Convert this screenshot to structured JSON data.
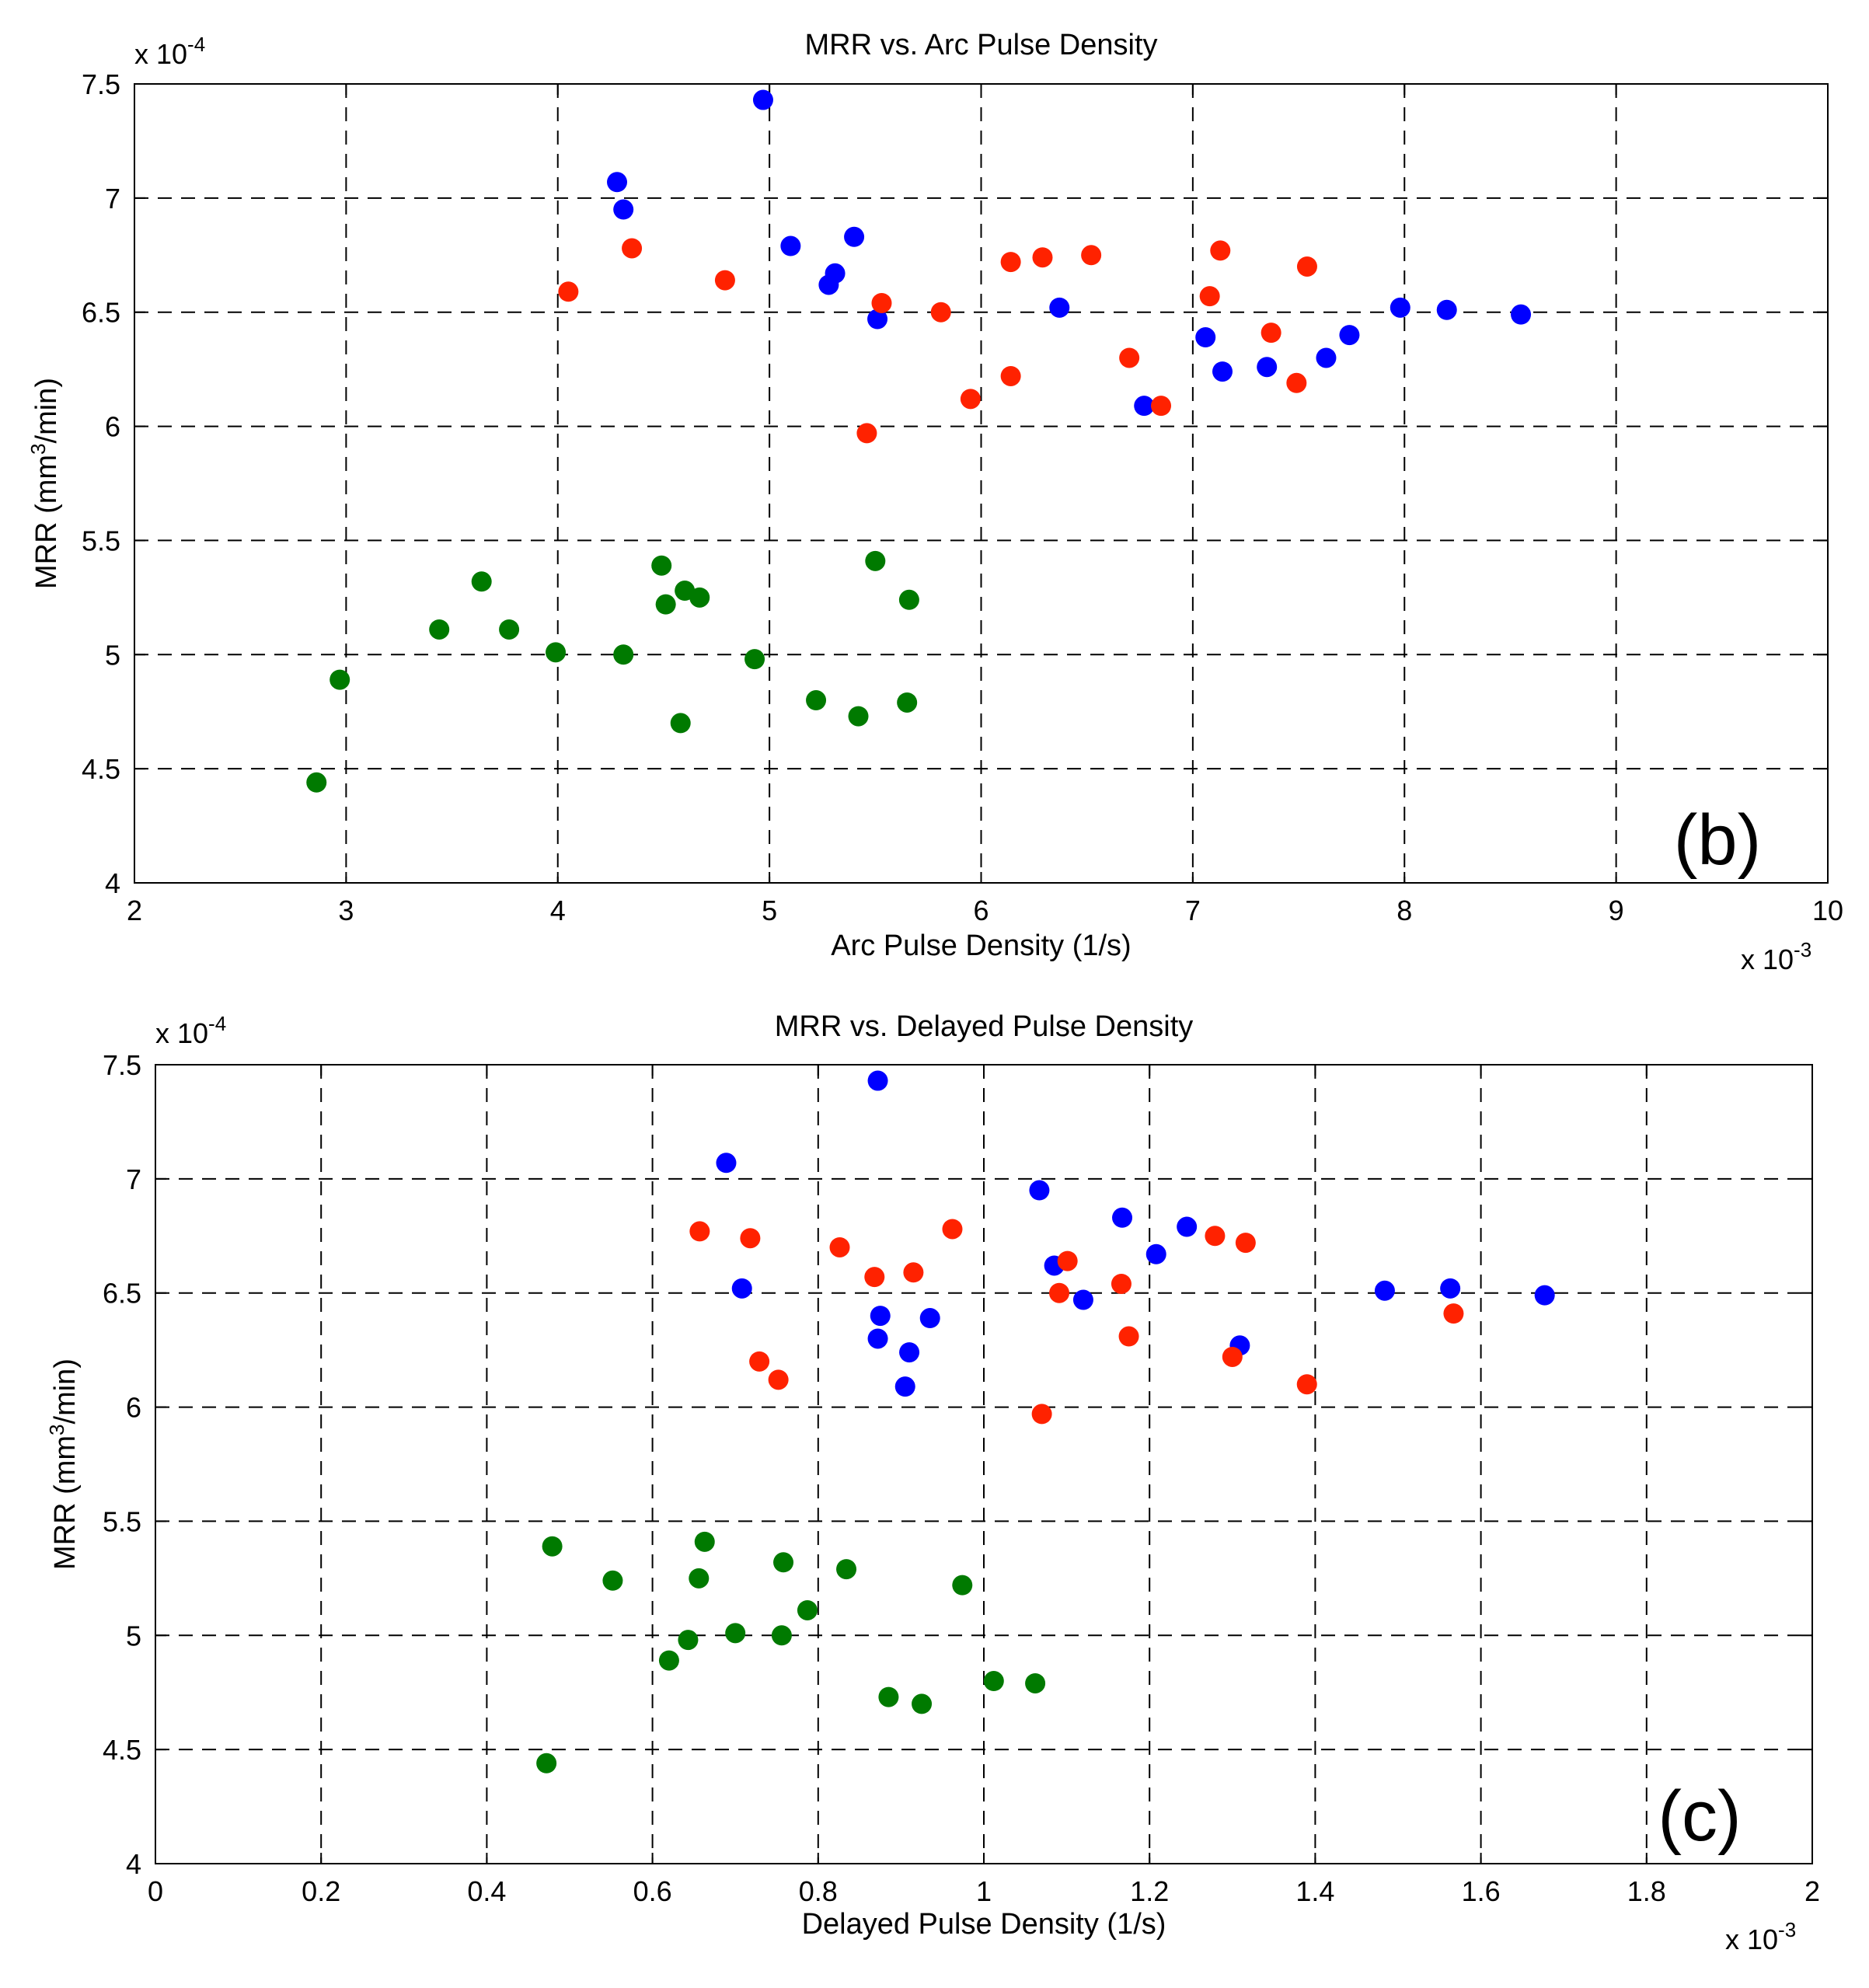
{
  "chart_data": [
    {
      "type": "scatter",
      "title": "MRR vs. Arc Pulse Density",
      "xlabel": "Arc Pulse Density (1/s)",
      "ylabel_main": "MRR (mm",
      "ylabel_sup": "3",
      "ylabel_tail": "/min)",
      "panel_label": "(b)",
      "x_multiplier_base": "x 10",
      "x_multiplier_exp": "-3",
      "y_multiplier_base": "x 10",
      "y_multiplier_exp": "-4",
      "xlim": [
        2,
        10
      ],
      "ylim": [
        4,
        7.5
      ],
      "xticks": [
        2,
        3,
        4,
        5,
        6,
        7,
        8,
        9,
        10
      ],
      "xtick_labels": [
        "2",
        "3",
        "4",
        "5",
        "6",
        "7",
        "8",
        "9",
        "10"
      ],
      "yticks": [
        4,
        4.5,
        5,
        5.5,
        6,
        6.5,
        7,
        7.5
      ],
      "ytick_labels": [
        "4",
        "4.5",
        "5",
        "5.5",
        "6",
        "6.5",
        "7",
        "7.5"
      ],
      "grid": true,
      "series": [
        {
          "name": "blue",
          "color": "#0000ff",
          "points": [
            [
              4.97,
              7.43
            ],
            [
              4.28,
              7.07
            ],
            [
              4.31,
              6.95
            ],
            [
              5.1,
              6.79
            ],
            [
              5.4,
              6.83
            ],
            [
              5.31,
              6.67
            ],
            [
              5.28,
              6.62
            ],
            [
              5.51,
              6.47
            ],
            [
              6.37,
              6.52
            ],
            [
              7.98,
              6.52
            ],
            [
              8.2,
              6.51
            ],
            [
              8.55,
              6.49
            ],
            [
              7.06,
              6.39
            ],
            [
              7.74,
              6.4
            ],
            [
              7.63,
              6.3
            ],
            [
              7.14,
              6.24
            ],
            [
              7.35,
              6.26
            ],
            [
              6.77,
              6.09
            ]
          ]
        },
        {
          "name": "red",
          "color": "#ff2200",
          "points": [
            [
              4.05,
              6.59
            ],
            [
              4.35,
              6.78
            ],
            [
              4.79,
              6.64
            ],
            [
              5.53,
              6.54
            ],
            [
              5.81,
              6.5
            ],
            [
              6.14,
              6.72
            ],
            [
              6.29,
              6.74
            ],
            [
              6.52,
              6.75
            ],
            [
              7.13,
              6.77
            ],
            [
              7.08,
              6.57
            ],
            [
              7.54,
              6.7
            ],
            [
              7.37,
              6.41
            ],
            [
              6.7,
              6.3
            ],
            [
              6.14,
              6.22
            ],
            [
              5.95,
              6.12
            ],
            [
              7.49,
              6.19
            ],
            [
              6.85,
              6.09
            ],
            [
              5.46,
              5.97
            ]
          ]
        },
        {
          "name": "green",
          "color": "#007a00",
          "points": [
            [
              2.86,
              4.44
            ],
            [
              2.97,
              4.89
            ],
            [
              3.44,
              5.11
            ],
            [
              3.64,
              5.32
            ],
            [
              3.77,
              5.11
            ],
            [
              3.99,
              5.01
            ],
            [
              4.31,
              5.0
            ],
            [
              4.49,
              5.39
            ],
            [
              4.51,
              5.22
            ],
            [
              4.6,
              5.28
            ],
            [
              4.67,
              5.25
            ],
            [
              4.58,
              4.7
            ],
            [
              4.93,
              4.98
            ],
            [
              5.22,
              4.8
            ],
            [
              5.42,
              4.73
            ],
            [
              5.5,
              5.41
            ],
            [
              5.66,
              5.24
            ],
            [
              5.65,
              4.79
            ]
          ]
        }
      ]
    },
    {
      "type": "scatter",
      "title": "MRR vs. Delayed Pulse Density",
      "xlabel": "Delayed Pulse Density (1/s)",
      "ylabel_main": "MRR (mm",
      "ylabel_sup": "3",
      "ylabel_tail": "/min)",
      "panel_label": "(c)",
      "x_multiplier_base": "x 10",
      "x_multiplier_exp": "-3",
      "y_multiplier_base": "x 10",
      "y_multiplier_exp": "-4",
      "xlim": [
        0,
        2
      ],
      "ylim": [
        4,
        7.5
      ],
      "xticks": [
        0,
        0.2,
        0.4,
        0.6,
        0.8,
        1,
        1.2,
        1.4,
        1.6,
        1.8,
        2
      ],
      "xtick_labels": [
        "0",
        "0.2",
        "0.4",
        "0.6",
        "0.8",
        "1",
        "1.2",
        "1.4",
        "1.6",
        "1.8",
        "2"
      ],
      "yticks": [
        4,
        4.5,
        5,
        5.5,
        6,
        6.5,
        7,
        7.5
      ],
      "ytick_labels": [
        "4",
        "4.5",
        "5",
        "5.5",
        "6",
        "6.5",
        "7",
        "7.5"
      ],
      "grid": true,
      "series": [
        {
          "name": "blue",
          "color": "#0000ff",
          "points": [
            [
              0.872,
              7.43
            ],
            [
              0.689,
              7.07
            ],
            [
              1.067,
              6.95
            ],
            [
              1.167,
              6.83
            ],
            [
              1.245,
              6.79
            ],
            [
              1.085,
              6.62
            ],
            [
              1.208,
              6.67
            ],
            [
              1.12,
              6.47
            ],
            [
              0.708,
              6.52
            ],
            [
              1.484,
              6.51
            ],
            [
              1.563,
              6.52
            ],
            [
              1.677,
              6.49
            ],
            [
              0.875,
              6.4
            ],
            [
              0.935,
              6.39
            ],
            [
              0.872,
              6.3
            ],
            [
              0.91,
              6.24
            ],
            [
              1.309,
              6.27
            ],
            [
              0.905,
              6.09
            ]
          ]
        },
        {
          "name": "red",
          "color": "#ff2200",
          "points": [
            [
              0.657,
              6.77
            ],
            [
              0.718,
              6.74
            ],
            [
              0.826,
              6.7
            ],
            [
              0.962,
              6.78
            ],
            [
              0.868,
              6.57
            ],
            [
              0.915,
              6.59
            ],
            [
              1.101,
              6.64
            ],
            [
              1.091,
              6.5
            ],
            [
              1.166,
              6.54
            ],
            [
              1.279,
              6.75
            ],
            [
              1.316,
              6.72
            ],
            [
              1.175,
              6.31
            ],
            [
              1.3,
              6.22
            ],
            [
              0.729,
              6.2
            ],
            [
              0.752,
              6.12
            ],
            [
              1.39,
              6.1
            ],
            [
              1.07,
              5.97
            ],
            [
              1.567,
              6.41
            ]
          ]
        },
        {
          "name": "green",
          "color": "#007a00",
          "points": [
            [
              0.479,
              5.39
            ],
            [
              0.552,
              5.24
            ],
            [
              0.663,
              5.41
            ],
            [
              0.656,
              5.25
            ],
            [
              0.758,
              5.32
            ],
            [
              0.834,
              5.29
            ],
            [
              0.974,
              5.22
            ],
            [
              0.787,
              5.11
            ],
            [
              0.7,
              5.01
            ],
            [
              0.756,
              5.0
            ],
            [
              0.643,
              4.98
            ],
            [
              0.62,
              4.89
            ],
            [
              0.885,
              4.73
            ],
            [
              0.925,
              4.7
            ],
            [
              1.012,
              4.8
            ],
            [
              1.062,
              4.79
            ],
            [
              0.472,
              4.44
            ]
          ]
        }
      ]
    }
  ]
}
